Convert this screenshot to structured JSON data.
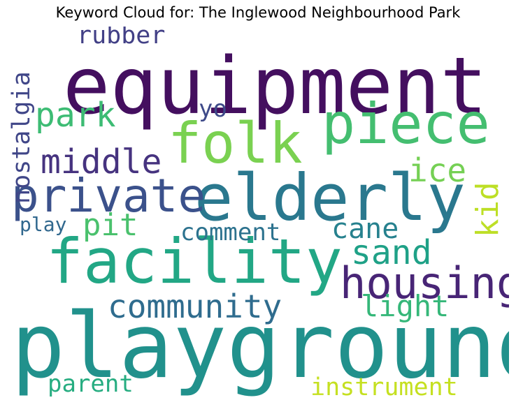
{
  "title": "Keyword Cloud for: The Inglewood Neighbourhood Park",
  "words": [
    {
      "text": "equipment",
      "color": "#440f5f"
    },
    {
      "text": "playground",
      "color": "#21918c"
    },
    {
      "text": "facility",
      "color": "#22a785"
    },
    {
      "text": "elderly",
      "color": "#2a788e"
    },
    {
      "text": "piece",
      "color": "#44be70"
    },
    {
      "text": "folk",
      "color": "#7ad151"
    },
    {
      "text": "private",
      "color": "#3b518b"
    },
    {
      "text": "housing",
      "color": "#482576"
    },
    {
      "text": "community",
      "color": "#2f6c8e"
    },
    {
      "text": "middle",
      "color": "#46337f"
    },
    {
      "text": "park",
      "color": "#3dbc74"
    },
    {
      "text": "sand",
      "color": "#1fa187"
    },
    {
      "text": "cane",
      "color": "#26818e"
    },
    {
      "text": "light",
      "color": "#35b779"
    },
    {
      "text": "ice",
      "color": "#75d054"
    },
    {
      "text": "kid",
      "color": "#bddf26"
    },
    {
      "text": "pit",
      "color": "#4ac16d"
    },
    {
      "text": "comment",
      "color": "#2c728e"
    },
    {
      "text": "rubber",
      "color": "#424086"
    },
    {
      "text": "nostalgia",
      "color": "#404688"
    },
    {
      "text": "play",
      "color": "#31688e"
    },
    {
      "text": "yo",
      "color": "#3e4a89"
    },
    {
      "text": "parent",
      "color": "#27ad81"
    },
    {
      "text": "instrument",
      "color": "#c5e021"
    }
  ]
}
